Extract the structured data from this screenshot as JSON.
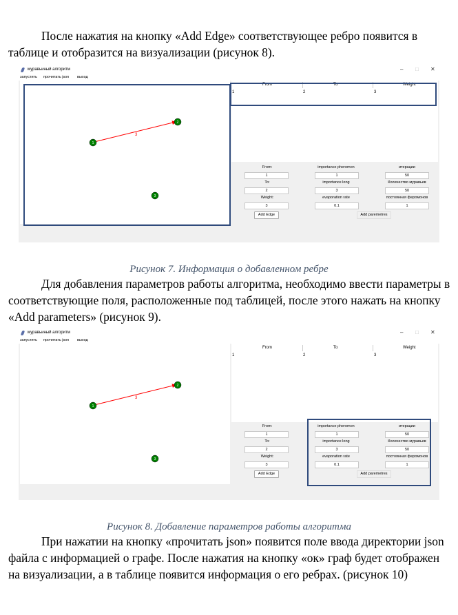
{
  "paragraphs": {
    "p1": "После нажатия на кнопку «Add Edge» соответствующее ребро появится в таблице и отобразится на визуализации (рисунок 8).",
    "p2": "Для добавления параметров работы алгоритма, необходимо ввести параметры в соответствующие поля, расположенные под таблицей, после этого нажать на кнопку «Add parameters» (рисунок 9).",
    "p3": "При нажатии на кнопку «прочитать json» появится поле ввода директории json файла с информацией о графе. После нажатия на кнопку «ок» граф будет отображен на визуализации, а в таблице появится информация о его ребрах. (рисунок 10)"
  },
  "captions": {
    "fig7": "Рисунок 7. Информация о добавленном ребре",
    "fig8": "Рисунок 8. Добавление параметров работы алгоритма"
  },
  "app": {
    "title": "муравьиный алгоритм",
    "controls": {
      "minimize": "–",
      "maximize": "□",
      "close": "✕"
    },
    "menu": [
      "запустить",
      "прочитать json",
      "выход"
    ],
    "table": {
      "headers": [
        "From",
        "To",
        "Weight"
      ],
      "rows": [
        [
          "1",
          "2",
          "3"
        ]
      ]
    },
    "graph": {
      "nodes": [
        "1",
        "2",
        "3"
      ],
      "edge_label": "3"
    },
    "form": {
      "from_label": "From:",
      "from_value": "1",
      "to_label": "To:",
      "to_value": "2",
      "weight_label": "Weight:",
      "weight_value": "3",
      "pher_label": "importance pheromon",
      "pher_value": "1",
      "long_label": "importance long",
      "long_value": "3",
      "evap_label": "evaporation rate",
      "evap_value": "0.1",
      "iter_label": "итерации",
      "iter_value": "50",
      "ants_label": "Количество муравьев",
      "ants_value": "50",
      "const_label": "постоянная феромонов",
      "const_value": "1",
      "add_edge": "Add Edge",
      "add_params": "Add paremetres"
    },
    "colors": {
      "node": "#008000",
      "edge": "#ff0000",
      "highlight": "#2f4a7c"
    }
  }
}
